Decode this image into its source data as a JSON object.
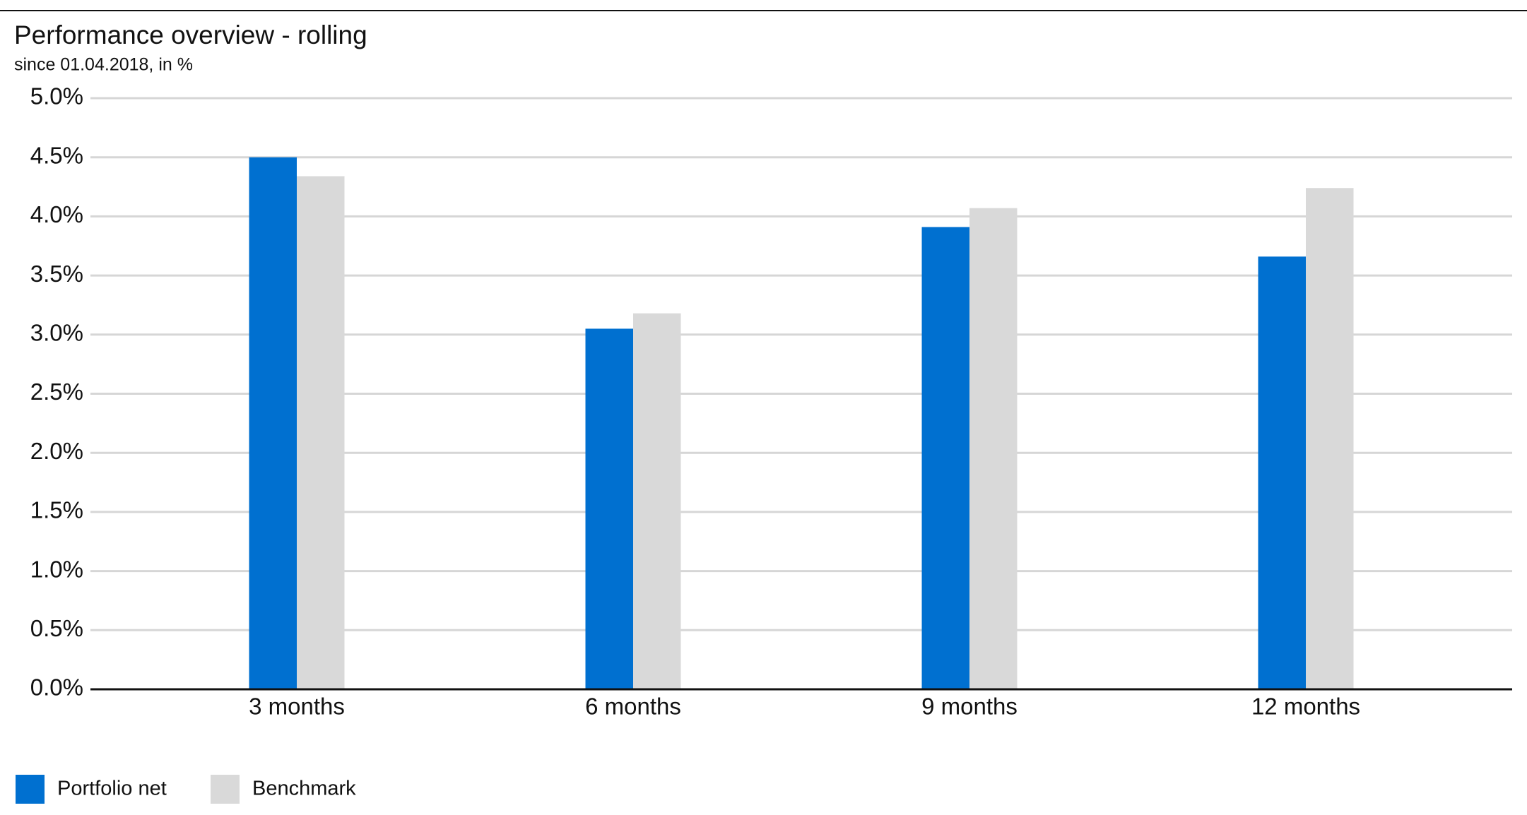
{
  "chart_data": {
    "type": "bar",
    "title": "Performance overview - rolling",
    "subtitle": "since 01.04.2018, in %",
    "categories": [
      "3 months",
      "6 months",
      "9 months",
      "12 months"
    ],
    "series": [
      {
        "name": "Portfolio net",
        "color": "#0070d0",
        "values": [
          4.5,
          3.05,
          3.91,
          3.66
        ]
      },
      {
        "name": "Benchmark",
        "color": "#d9d9d9",
        "values": [
          4.34,
          3.18,
          4.07,
          4.24
        ]
      }
    ],
    "ylim": [
      0,
      5
    ],
    "yticks": [
      {
        "value": 0,
        "label": "0.0%"
      },
      {
        "value": 0.5,
        "label": "0.5%"
      },
      {
        "value": 1,
        "label": "1.0%"
      },
      {
        "value": 1.5,
        "label": "1.5%"
      },
      {
        "value": 2,
        "label": "2.0%"
      },
      {
        "value": 2.5,
        "label": "2.5%"
      },
      {
        "value": 3,
        "label": "3.0%"
      },
      {
        "value": 3.5,
        "label": "3.5%"
      },
      {
        "value": 4,
        "label": "4.0%"
      },
      {
        "value": 4.5,
        "label": "4.5%"
      },
      {
        "value": 5,
        "label": "5.0%"
      }
    ],
    "grid": true,
    "legend": "bottom-left"
  }
}
